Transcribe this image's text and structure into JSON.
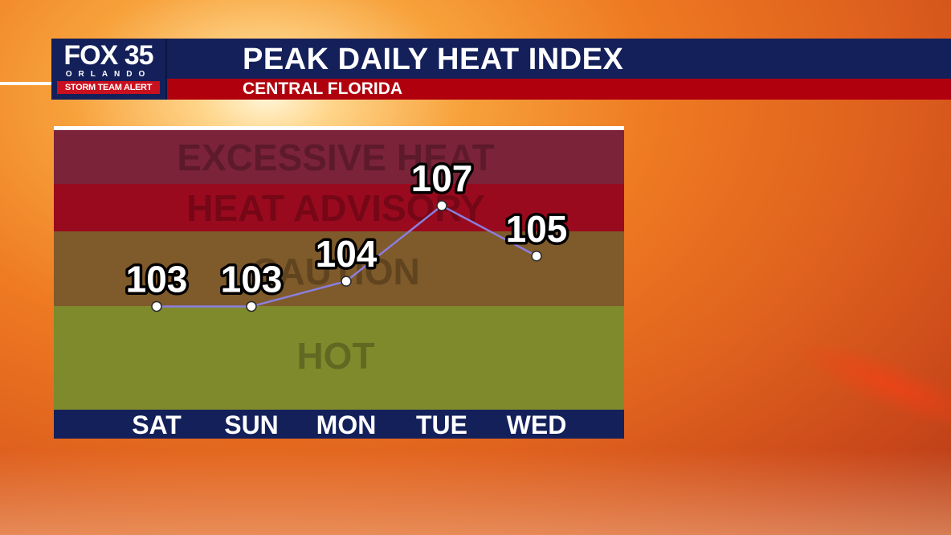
{
  "branding": {
    "station": "FOX 35",
    "city": "ORLANDO",
    "alert": "STORM TEAM ALERT"
  },
  "header": {
    "title": "PEAK DAILY HEAT INDEX",
    "subtitle": "CENTRAL FLORIDA"
  },
  "colors": {
    "header_navy": "#14205a",
    "header_red": "#b0000d",
    "excessive_heat": "#7b2338",
    "heat_advisory": "#9a0a1e",
    "caution": "#7f5a2a",
    "hot": "#7f8a2c",
    "axis_bar": "#14205a",
    "line": "#8a7fe0"
  },
  "chart_data": {
    "type": "line",
    "title": "PEAK DAILY HEAT INDEX",
    "subtitle": "CENTRAL FLORIDA",
    "categories": [
      "SAT",
      "SUN",
      "MON",
      "TUE",
      "WED"
    ],
    "values": [
      103,
      103,
      104,
      107,
      105
    ],
    "bands": [
      {
        "label": "EXCESSIVE HEAT",
        "color": "#7b2338"
      },
      {
        "label": "HEAT ADVISORY",
        "color": "#9a0a1e"
      },
      {
        "label": "CAUTION",
        "color": "#7f5a2a"
      },
      {
        "label": "HOT",
        "color": "#7f8a2c"
      }
    ],
    "ylim": [
      98.9,
      110
    ],
    "grid": false,
    "legend": "none"
  }
}
